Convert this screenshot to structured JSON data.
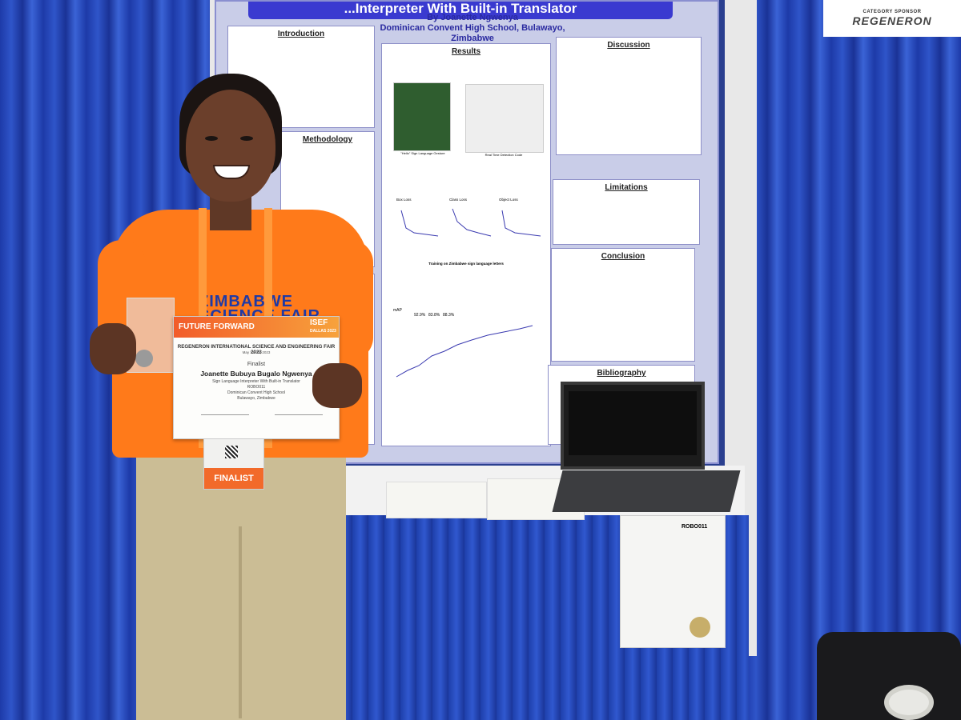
{
  "poster": {
    "title": "...Interpreter With Built-in Translator",
    "author": "By Joanette Ngwenya",
    "school": "Dominican Convent High School, Bulawayo, Zimbabwe",
    "sections": [
      "Introduction",
      "Methodology",
      "Results",
      "Discussion",
      "Limitations",
      "Conclusion",
      "Bibliography"
    ],
    "results_figure_labels": [
      "Box Loss",
      "Class Loss",
      "Object Loss"
    ],
    "results_caption": "Training on Zimbabwe sign language letters",
    "map_label": "mAP",
    "map_metrics": [
      "92.9%",
      "83.8%",
      "88.3%"
    ],
    "hello_label": "\"Hello\" Sign Language Gesture",
    "detection_label": "Real Time Detection Code"
  },
  "sponsor": {
    "category": "CATEGORY SPONSOR",
    "name": "REGENERON"
  },
  "shirt": {
    "line1": "ZIMBABWE",
    "line2": "SCIENCE FAIR"
  },
  "certificate": {
    "header": "FUTURE FORWARD",
    "logo": "ISEF",
    "logo_sub": "DALLAS 2023",
    "event": "REGENERON INTERNATIONAL SCIENCE AND ENGINEERING FAIR 2023",
    "dates": "May 13–19, 2023",
    "status": "Finalist",
    "name": "Joanette Bubuya Bugalo Ngwenya",
    "project": "Sign Language Interpreter With Built-in Translator",
    "code": "ROBO011",
    "school": "Dominican Convent High School",
    "location": "Bulawayo, Zimbabwe"
  },
  "badge": {
    "label": "FINALIST"
  },
  "desk_sheet": {
    "code": "ROBO011"
  }
}
